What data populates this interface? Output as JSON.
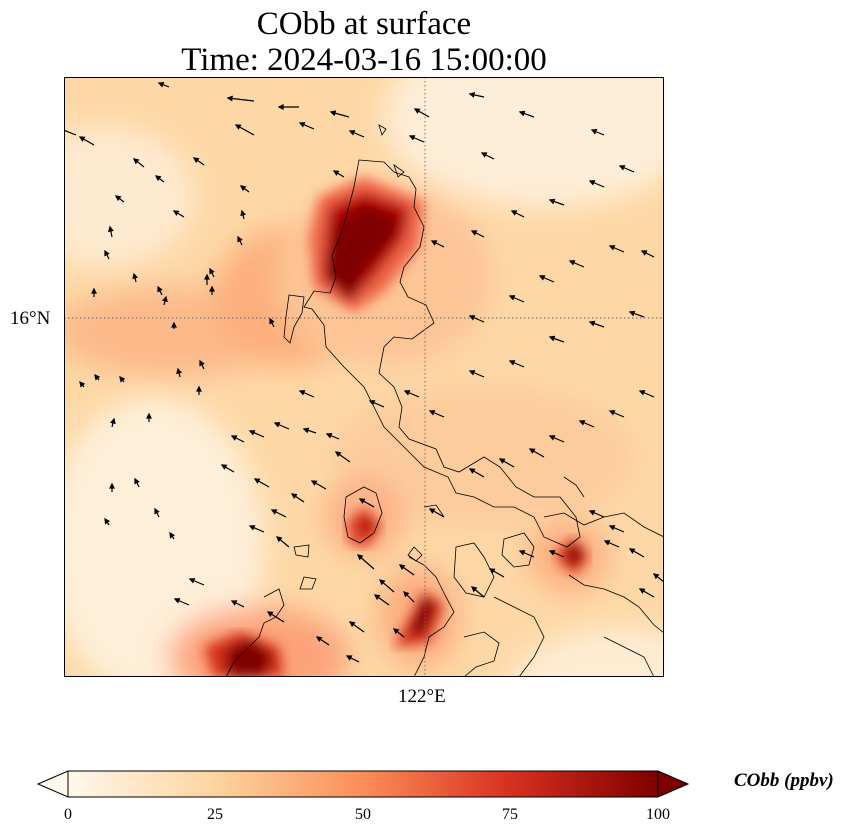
{
  "title": {
    "line1": "CObb at surface",
    "line2": "Time: 2024-03-16 15:00:00"
  },
  "axes": {
    "lat_label": "16°N",
    "lon_label": "122°E"
  },
  "colorbar": {
    "label": "CObb (ppbv)",
    "ticks": [
      "0",
      "25",
      "50",
      "75",
      "100"
    ],
    "vmin": 0,
    "vmax": 100,
    "extend": "both",
    "colormap": "OrRd",
    "colors": [
      "#fff7ec",
      "#fdd49e",
      "#fc8d59",
      "#d7301f",
      "#7f0000"
    ]
  },
  "map": {
    "features": [
      "coastlines",
      "wind-vectors",
      "gridlines"
    ],
    "gridline_style": "dotted"
  }
}
